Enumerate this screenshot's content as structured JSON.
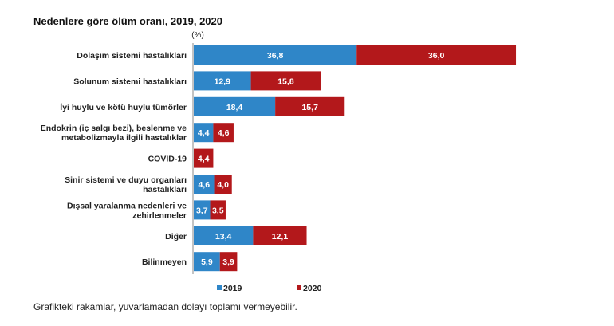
{
  "chart_data": {
    "type": "bar",
    "orientation": "horizontal",
    "stacked": true,
    "title": "Nedenlere göre ölüm oranı, 2019, 2020",
    "unit": "(%)",
    "categories": [
      [
        "Dolaşım sistemi hastalıkları"
      ],
      [
        "Solunum sistemi hastalıkları"
      ],
      [
        "İyi huylu ve kötü huylu tümörler"
      ],
      [
        "Endokrin (iç salgı bezi), beslenme ve",
        "metabolizmayla ilgili hastalıklar"
      ],
      [
        "COVID-19"
      ],
      [
        "Sinir sistemi ve duyu organları",
        "hastalıkları"
      ],
      [
        "Dışsal yaralanma nedenleri ve",
        "zehirlenmeler"
      ],
      [
        "Diğer"
      ],
      [
        "Bilinmeyen"
      ]
    ],
    "series": [
      {
        "name": "2019",
        "color": "#2f86c8",
        "values": [
          36.8,
          12.9,
          18.4,
          4.4,
          null,
          4.6,
          3.7,
          13.4,
          5.9
        ],
        "labels": [
          "36,8",
          "12,9",
          "18,4",
          "4,4",
          "",
          "4,6",
          "3,7",
          "13,4",
          "5,9"
        ]
      },
      {
        "name": "2020",
        "color": "#b3181b",
        "values": [
          36.0,
          15.8,
          15.7,
          4.6,
          4.4,
          4.0,
          3.5,
          12.1,
          3.9
        ],
        "labels": [
          "36,0",
          "15,8",
          "15,7",
          "4,6",
          "4,4",
          "4,0",
          "3,5",
          "12,1",
          "3,9"
        ]
      }
    ],
    "legend_position": "bottom",
    "grid": false,
    "footnote": "Grafikteki rakamlar, yuvarlamadan dolayı toplamı vermeyebilir."
  }
}
